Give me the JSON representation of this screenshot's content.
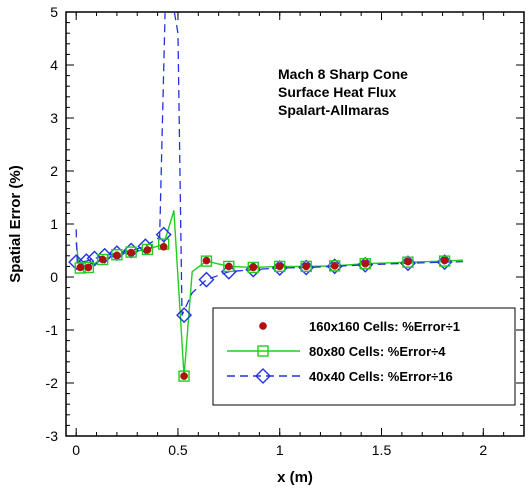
{
  "chart_data": {
    "type": "scatter",
    "title": "",
    "annotation": [
      "Mach 8 Sharp Cone",
      "Surface Heat Flux",
      "Spalart-Allmaras"
    ],
    "xlabel": "x (m)",
    "ylabel": "Spatial Error (%)",
    "xlim": [
      -0.05,
      2.2
    ],
    "ylim": [
      -3,
      5
    ],
    "xticks": [
      0,
      0.5,
      1,
      1.5,
      2
    ],
    "xtick_labels": [
      "0",
      "0.5",
      "1",
      "1.5",
      "2"
    ],
    "yticks": [
      -3,
      -2,
      -1,
      0,
      1,
      2,
      3,
      4,
      5
    ],
    "ytick_labels": [
      "-3",
      "-2",
      "-1",
      "0",
      "1",
      "2",
      "3",
      "4",
      "5"
    ],
    "legend_position": "lower-right",
    "series": [
      {
        "name": "160x160 Cells: %Error÷1",
        "marker": "filled-circle",
        "line": "none",
        "color": "#b01010",
        "x": [
          0.02,
          0.06,
          0.13,
          0.2,
          0.27,
          0.35,
          0.43,
          0.53,
          0.64,
          0.75,
          0.87,
          1.0,
          1.13,
          1.27,
          1.42,
          1.63,
          1.81
        ],
        "y": [
          0.18,
          0.18,
          0.33,
          0.41,
          0.46,
          0.51,
          0.57,
          -1.87,
          0.31,
          0.2,
          0.18,
          0.2,
          0.2,
          0.21,
          0.25,
          0.29,
          0.31
        ]
      },
      {
        "name": "80x80 Cells: %Error÷4",
        "marker": "open-square",
        "line": "solid",
        "color": "#22cc22",
        "x": [
          0.0,
          0.015,
          0.03,
          0.06,
          0.1,
          0.14,
          0.2,
          0.27,
          0.35,
          0.43,
          0.48,
          0.53,
          0.57,
          0.64,
          0.75,
          0.87,
          1.0,
          1.13,
          1.27,
          1.42,
          1.63,
          1.81,
          1.9
        ],
        "y": [
          0.65,
          0.18,
          0.15,
          0.18,
          0.28,
          0.35,
          0.42,
          0.47,
          0.52,
          0.62,
          1.25,
          -1.87,
          0.1,
          0.3,
          0.2,
          0.18,
          0.2,
          0.2,
          0.21,
          0.25,
          0.28,
          0.3,
          0.32
        ],
        "marker_x": [
          0.02,
          0.06,
          0.13,
          0.2,
          0.27,
          0.35,
          0.43,
          0.53,
          0.64,
          0.75,
          0.87,
          1.0,
          1.13,
          1.27,
          1.42,
          1.63,
          1.81
        ],
        "marker_y": [
          0.17,
          0.18,
          0.33,
          0.42,
          0.47,
          0.52,
          0.62,
          -1.87,
          0.3,
          0.2,
          0.18,
          0.2,
          0.2,
          0.21,
          0.25,
          0.28,
          0.3
        ]
      },
      {
        "name": "40x40 Cells: %Error÷16",
        "marker": "open-diamond",
        "line": "dashed",
        "color": "#2233dd",
        "x": [
          0.0,
          0.005,
          0.02,
          0.05,
          0.09,
          0.14,
          0.2,
          0.27,
          0.34,
          0.41,
          0.44,
          0.46,
          0.5,
          0.52,
          0.57,
          0.64,
          0.75,
          0.87,
          1.0,
          1.13,
          1.27,
          1.42,
          1.63,
          1.81,
          1.9
        ],
        "y": [
          0.9,
          0.28,
          0.28,
          0.3,
          0.35,
          0.4,
          0.45,
          0.5,
          0.58,
          0.75,
          5.5,
          5.5,
          4.6,
          -0.72,
          -0.3,
          -0.05,
          0.1,
          0.14,
          0.17,
          0.18,
          0.2,
          0.23,
          0.26,
          0.28,
          0.29
        ],
        "marker_x": [
          0.0,
          0.05,
          0.09,
          0.14,
          0.2,
          0.27,
          0.34,
          0.43,
          0.53,
          0.64,
          0.75,
          0.87,
          1.0,
          1.13,
          1.27,
          1.42,
          1.63,
          1.81
        ],
        "marker_y": [
          0.28,
          0.3,
          0.35,
          0.4,
          0.45,
          0.5,
          0.58,
          0.8,
          -0.72,
          -0.05,
          0.1,
          0.14,
          0.17,
          0.18,
          0.2,
          0.23,
          0.26,
          0.28
        ]
      }
    ]
  }
}
